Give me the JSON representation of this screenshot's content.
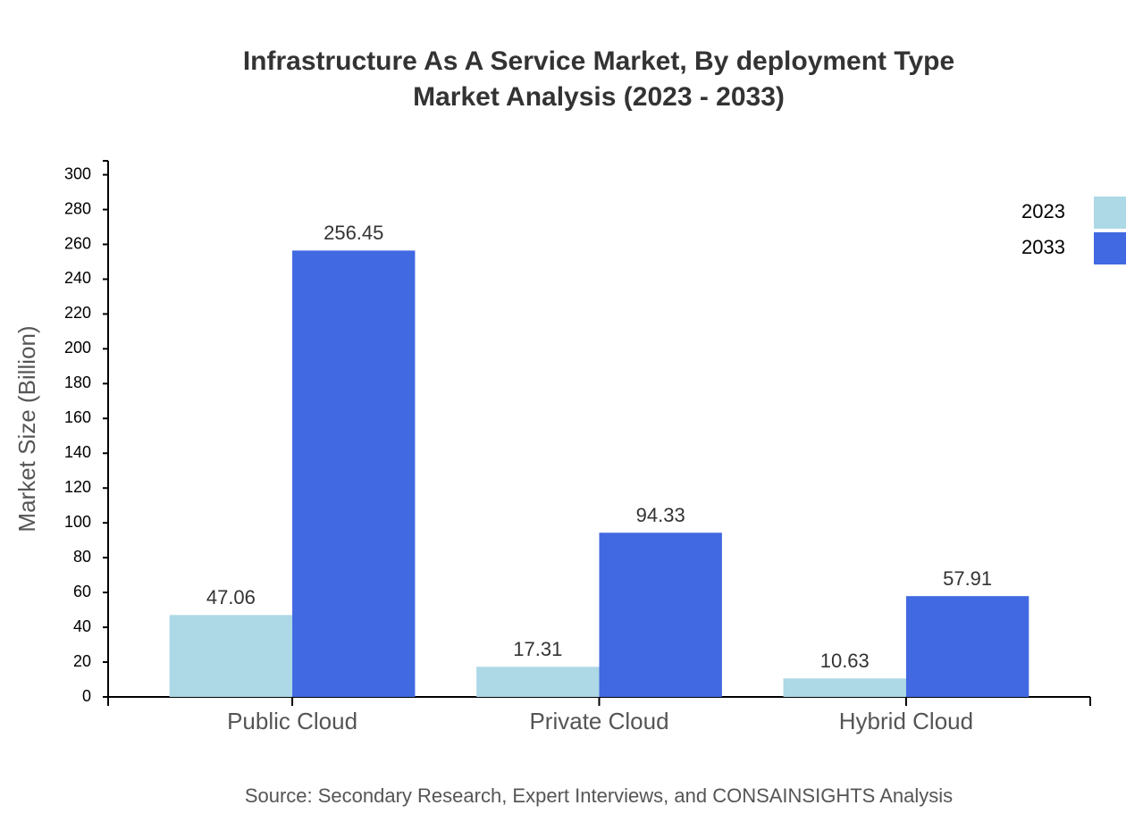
{
  "chart_data": {
    "type": "bar",
    "title": [
      "Infrastructure As A Service Market, By deployment Type",
      "Market Analysis (2023 - 2033)"
    ],
    "y_label": "Market Size (Billion)",
    "source": "Source: Secondary Research, Expert Interviews, and CONSAINSIGHTS Analysis",
    "categories": [
      "Public Cloud",
      "Private Cloud",
      "Hybrid Cloud"
    ],
    "series": [
      {
        "name": "2023",
        "color": "#add8e6",
        "values": [
          47.06,
          17.31,
          10.63
        ]
      },
      {
        "name": "2033",
        "color": "#4169e1",
        "values": [
          256.45,
          94.33,
          57.91
        ]
      }
    ],
    "ylim": [
      0,
      308
    ],
    "yticks": [
      0,
      20,
      40,
      60,
      80,
      100,
      120,
      140,
      160,
      180,
      200,
      220,
      240,
      260,
      280,
      300
    ],
    "legend": "top-right"
  }
}
